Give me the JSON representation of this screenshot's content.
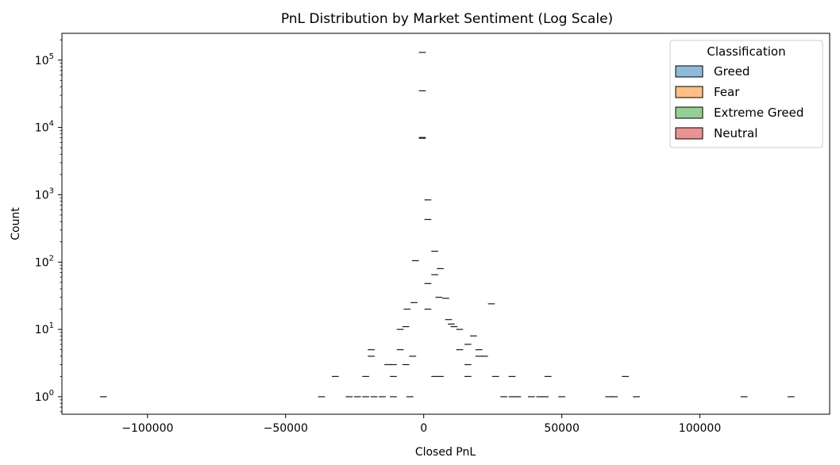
{
  "chart_data": {
    "type": "histogram",
    "title": "PnL Distribution by Market Sentiment (Log Scale)",
    "xlabel": "Closed PnL",
    "ylabel": "Count",
    "xlim": [
      -131000,
      147000
    ],
    "ylim": [
      0.55,
      250000
    ],
    "yscale": "log",
    "grid": false,
    "x_ticks": [
      {
        "value": -100000,
        "label": "−100000"
      },
      {
        "value": -50000,
        "label": "−50000"
      },
      {
        "value": 0,
        "label": "0"
      },
      {
        "value": 50000,
        "label": "50000"
      },
      {
        "value": 100000,
        "label": "100000"
      }
    ],
    "y_ticks": [
      {
        "value": 1,
        "base": "10",
        "exp": "0"
      },
      {
        "value": 10,
        "base": "10",
        "exp": "1"
      },
      {
        "value": 100,
        "base": "10",
        "exp": "2"
      },
      {
        "value": 1000,
        "base": "10",
        "exp": "3"
      },
      {
        "value": 10000,
        "base": "10",
        "exp": "4"
      },
      {
        "value": 100000,
        "base": "10",
        "exp": "5"
      }
    ],
    "legend": {
      "title": "Classification",
      "placement": "top-right",
      "entries": [
        {
          "name": "Greed",
          "color": "#1f77b4"
        },
        {
          "name": "Fear",
          "color": "#ff7f0e"
        },
        {
          "name": "Extreme Greed",
          "color": "#2ca02c"
        },
        {
          "name": "Neutral",
          "color": "#d62728"
        }
      ]
    },
    "bin_width": 2500,
    "bins": [
      {
        "x": -116000,
        "count": 1
      },
      {
        "x": -37000,
        "count": 1
      },
      {
        "x": -32000,
        "count": 2
      },
      {
        "x": -27000,
        "count": 1
      },
      {
        "x": -24000,
        "count": 1
      },
      {
        "x": -21000,
        "count": 1
      },
      {
        "x": -21000,
        "count": 2
      },
      {
        "x": -19000,
        "count": 5
      },
      {
        "x": -19000,
        "count": 4
      },
      {
        "x": -18000,
        "count": 1
      },
      {
        "x": -15000,
        "count": 1
      },
      {
        "x": -13000,
        "count": 3
      },
      {
        "x": -11000,
        "count": 3
      },
      {
        "x": -11000,
        "count": 2
      },
      {
        "x": -11000,
        "count": 1
      },
      {
        "x": -8500,
        "count": 5
      },
      {
        "x": -8500,
        "count": 10
      },
      {
        "x": -6500,
        "count": 11
      },
      {
        "x": -6500,
        "count": 3
      },
      {
        "x": -6000,
        "count": 20
      },
      {
        "x": -5000,
        "count": 1
      },
      {
        "x": -4000,
        "count": 4
      },
      {
        "x": -3500,
        "count": 25
      },
      {
        "x": -3000,
        "count": 105
      },
      {
        "x": -500,
        "count": 130000
      },
      {
        "x": -500,
        "count": 35000
      },
      {
        "x": -500,
        "count": 6900
      },
      {
        "x": -500,
        "count": 7100
      },
      {
        "x": 1500,
        "count": 840
      },
      {
        "x": 1500,
        "count": 430
      },
      {
        "x": 1500,
        "count": 48
      },
      {
        "x": 1500,
        "count": 20
      },
      {
        "x": 4000,
        "count": 145
      },
      {
        "x": 4000,
        "count": 65
      },
      {
        "x": 4000,
        "count": 2
      },
      {
        "x": 5500,
        "count": 30
      },
      {
        "x": 6000,
        "count": 80
      },
      {
        "x": 6000,
        "count": 2
      },
      {
        "x": 8000,
        "count": 29
      },
      {
        "x": 9000,
        "count": 14
      },
      {
        "x": 10000,
        "count": 12
      },
      {
        "x": 11000,
        "count": 11
      },
      {
        "x": 13000,
        "count": 10
      },
      {
        "x": 13000,
        "count": 5
      },
      {
        "x": 16000,
        "count": 6
      },
      {
        "x": 16000,
        "count": 3
      },
      {
        "x": 16000,
        "count": 2
      },
      {
        "x": 18000,
        "count": 8
      },
      {
        "x": 20000,
        "count": 5
      },
      {
        "x": 20000,
        "count": 4
      },
      {
        "x": 22000,
        "count": 4
      },
      {
        "x": 24500,
        "count": 24
      },
      {
        "x": 26000,
        "count": 2
      },
      {
        "x": 29000,
        "count": 1
      },
      {
        "x": 32000,
        "count": 1
      },
      {
        "x": 32000,
        "count": 2
      },
      {
        "x": 34000,
        "count": 1
      },
      {
        "x": 39000,
        "count": 1
      },
      {
        "x": 42000,
        "count": 1
      },
      {
        "x": 44000,
        "count": 1
      },
      {
        "x": 45000,
        "count": 2
      },
      {
        "x": 50000,
        "count": 1
      },
      {
        "x": 67000,
        "count": 1
      },
      {
        "x": 69000,
        "count": 1
      },
      {
        "x": 73000,
        "count": 2
      },
      {
        "x": 77000,
        "count": 1
      },
      {
        "x": 116000,
        "count": 1
      },
      {
        "x": 133000,
        "count": 1
      }
    ]
  }
}
